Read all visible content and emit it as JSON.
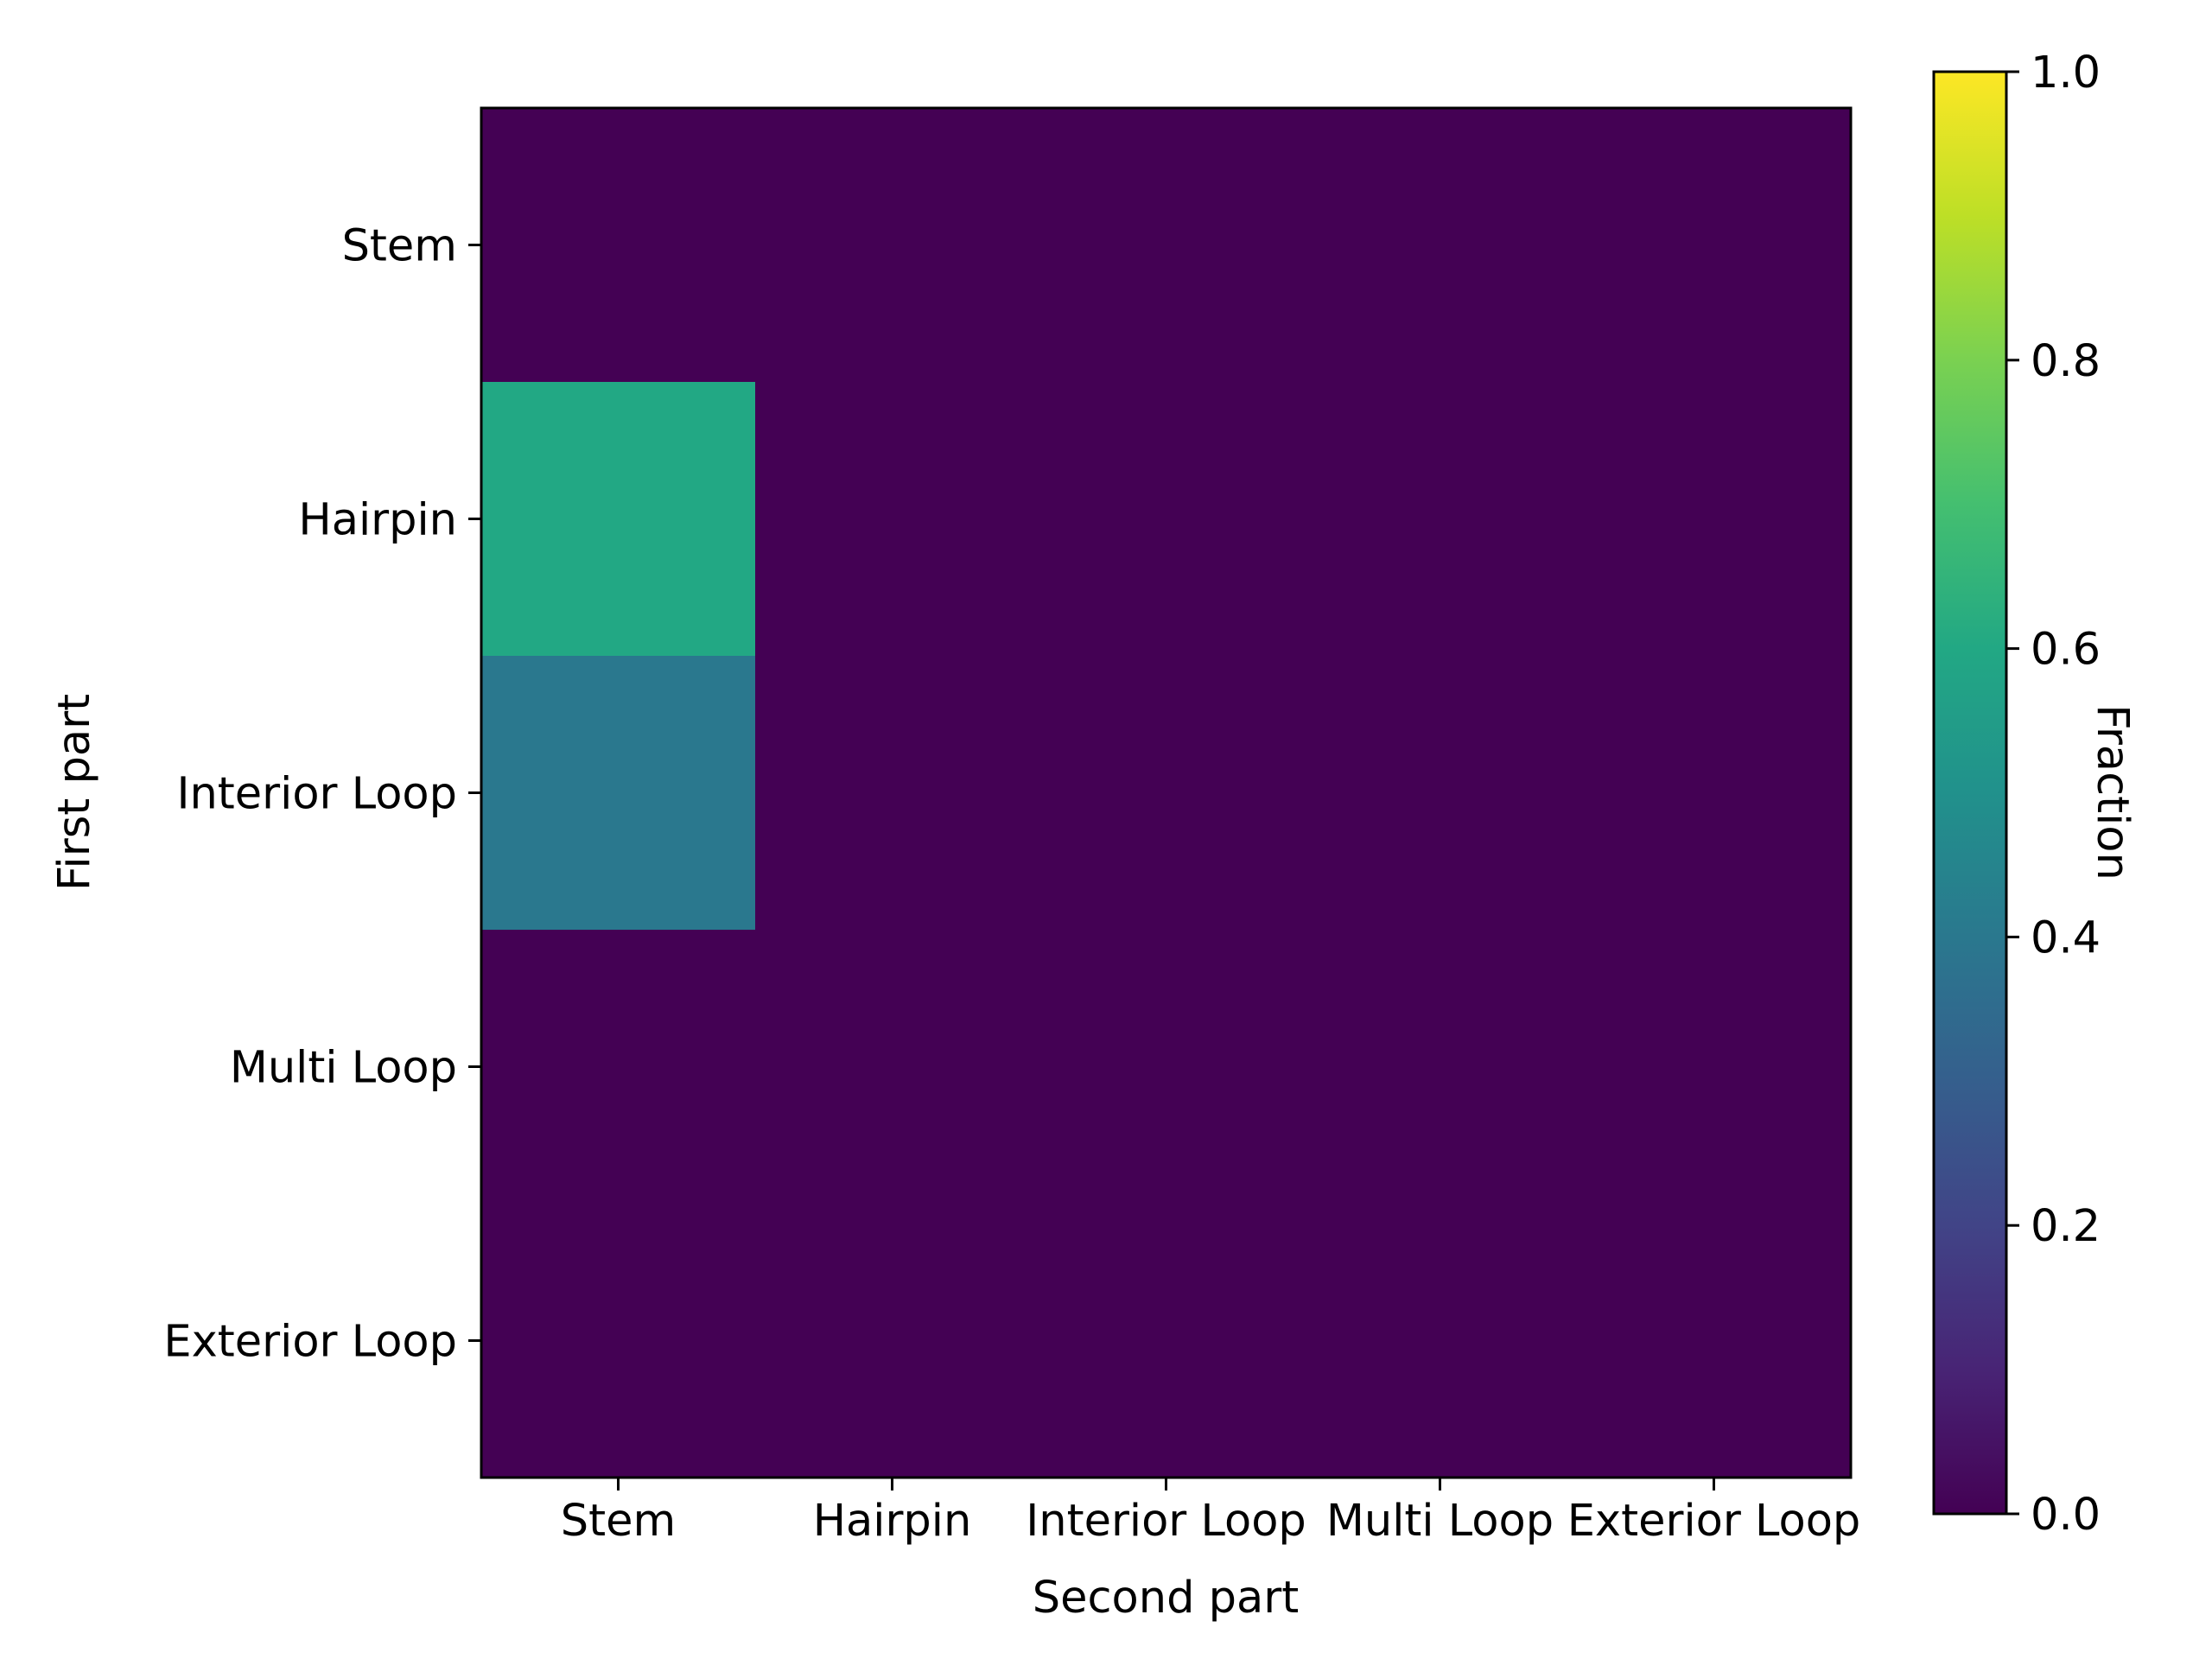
{
  "chart_data": {
    "type": "heatmap",
    "x_categories": [
      "Stem",
      "Hairpin",
      "Interior Loop",
      "Multi Loop",
      "Exterior Loop"
    ],
    "y_categories": [
      "Stem",
      "Hairpin",
      "Interior Loop",
      "Multi Loop",
      "Exterior Loop"
    ],
    "values": [
      [
        0.0,
        0.0,
        0.0,
        0.0,
        0.0
      ],
      [
        0.6,
        0.0,
        0.0,
        0.0,
        0.0
      ],
      [
        0.4,
        0.0,
        0.0,
        0.0,
        0.0
      ],
      [
        0.0,
        0.0,
        0.0,
        0.0,
        0.0
      ],
      [
        0.0,
        0.0,
        0.0,
        0.0,
        0.0
      ]
    ],
    "xlabel": "Second part",
    "ylabel": "First part",
    "colorbar": {
      "label": "Fraction",
      "range": [
        0.0,
        1.0
      ],
      "ticks": [
        0.0,
        0.2,
        0.4,
        0.6,
        0.8,
        1.0
      ],
      "tick_labels": [
        "0.0",
        "0.2",
        "0.4",
        "0.6",
        "0.8",
        "1.0"
      ],
      "colormap": "viridis"
    }
  }
}
